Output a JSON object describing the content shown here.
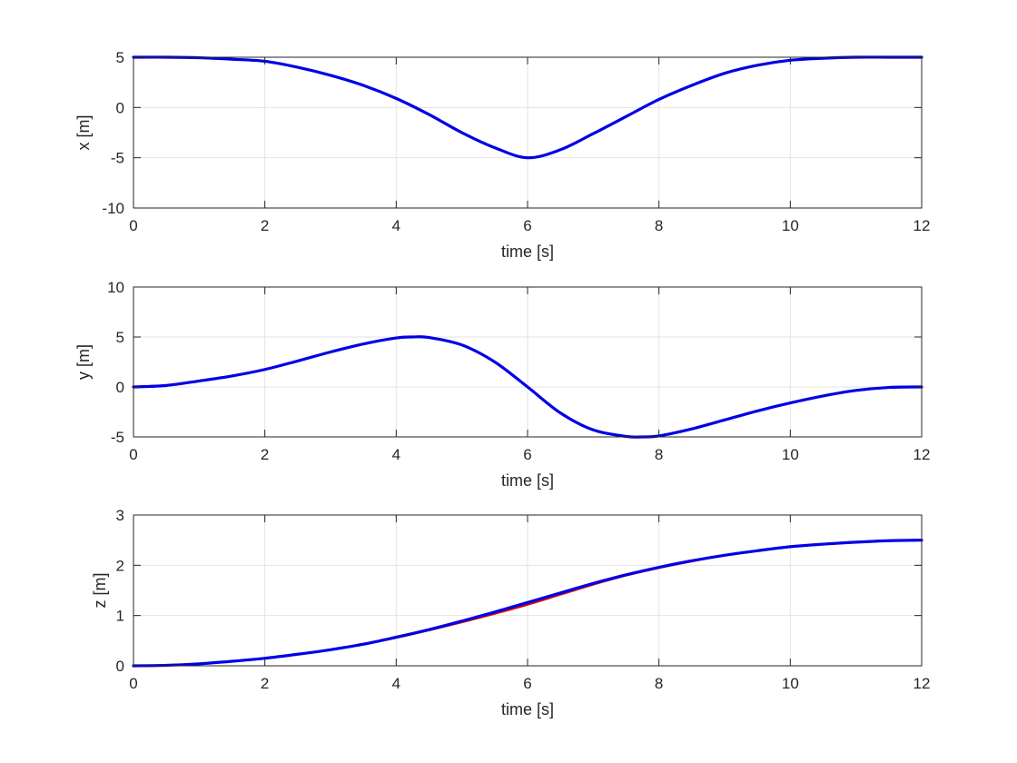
{
  "chart_data": [
    {
      "type": "line",
      "xlabel": "time [s]",
      "ylabel": "x [m]",
      "xlim": [
        0,
        12
      ],
      "ylim": [
        -10,
        5
      ],
      "xticks": [
        0,
        2,
        4,
        6,
        8,
        10,
        12
      ],
      "yticks": [
        -10,
        -5,
        0,
        5
      ],
      "grid": true,
      "series": [
        {
          "color": "#e00000",
          "x": [
            0,
            0.5,
            1,
            1.5,
            2,
            2.5,
            3,
            3.5,
            4,
            4.5,
            5,
            5.5,
            6,
            6.5,
            7,
            7.5,
            8,
            8.5,
            9,
            9.5,
            10,
            10.5,
            11,
            11.5,
            12
          ],
          "values": [
            5.0,
            5.0,
            4.95,
            4.8,
            4.6,
            4.0,
            3.2,
            2.2,
            0.9,
            -0.7,
            -2.5,
            -4.0,
            -5.0,
            -4.2,
            -2.6,
            -0.9,
            0.8,
            2.2,
            3.4,
            4.2,
            4.7,
            4.9,
            5.0,
            5.0,
            5.0
          ]
        },
        {
          "color": "#0000e6",
          "x": [
            0,
            0.5,
            1,
            1.5,
            2,
            2.5,
            3,
            3.5,
            4,
            4.5,
            5,
            5.5,
            6,
            6.5,
            7,
            7.5,
            8,
            8.5,
            9,
            9.5,
            10,
            10.5,
            11,
            11.5,
            12
          ],
          "values": [
            5.0,
            5.0,
            4.95,
            4.8,
            4.6,
            4.0,
            3.2,
            2.2,
            0.9,
            -0.7,
            -2.5,
            -4.0,
            -5.0,
            -4.2,
            -2.6,
            -0.9,
            0.8,
            2.2,
            3.4,
            4.2,
            4.7,
            4.9,
            5.0,
            5.0,
            5.0
          ]
        }
      ]
    },
    {
      "type": "line",
      "xlabel": "time [s]",
      "ylabel": "y [m]",
      "xlim": [
        0,
        12
      ],
      "ylim": [
        -5,
        10
      ],
      "xticks": [
        0,
        2,
        4,
        6,
        8,
        10,
        12
      ],
      "yticks": [
        -5,
        0,
        5,
        10
      ],
      "grid": true,
      "series": [
        {
          "color": "#e00000",
          "x": [
            0,
            0.5,
            1,
            1.5,
            2,
            2.5,
            3,
            3.5,
            4,
            4.25,
            4.5,
            5,
            5.5,
            6,
            6.5,
            7,
            7.5,
            7.75,
            8,
            8.5,
            9,
            9.5,
            10,
            10.5,
            11,
            11.5,
            12
          ],
          "values": [
            0,
            0.15,
            0.6,
            1.1,
            1.75,
            2.6,
            3.5,
            4.3,
            4.9,
            5.0,
            4.95,
            4.2,
            2.5,
            0.0,
            -2.6,
            -4.3,
            -4.95,
            -5.0,
            -4.9,
            -4.2,
            -3.3,
            -2.4,
            -1.6,
            -0.9,
            -0.35,
            -0.05,
            0
          ]
        },
        {
          "color": "#0000e6",
          "x": [
            0,
            0.5,
            1,
            1.5,
            2,
            2.5,
            3,
            3.5,
            4,
            4.25,
            4.5,
            5,
            5.5,
            6,
            6.5,
            7,
            7.5,
            7.75,
            8,
            8.5,
            9,
            9.5,
            10,
            10.5,
            11,
            11.5,
            12
          ],
          "values": [
            0,
            0.15,
            0.6,
            1.1,
            1.75,
            2.6,
            3.5,
            4.3,
            4.9,
            5.0,
            4.95,
            4.2,
            2.5,
            0.0,
            -2.6,
            -4.3,
            -4.95,
            -5.0,
            -4.9,
            -4.2,
            -3.3,
            -2.4,
            -1.6,
            -0.9,
            -0.35,
            -0.05,
            0
          ]
        }
      ]
    },
    {
      "type": "line",
      "xlabel": "time [s]",
      "ylabel": "z [m]",
      "xlim": [
        0,
        12
      ],
      "ylim": [
        0,
        3
      ],
      "xticks": [
        0,
        2,
        4,
        6,
        8,
        10,
        12
      ],
      "yticks": [
        0,
        1,
        2,
        3
      ],
      "grid": true,
      "series": [
        {
          "color": "#e00000",
          "x": [
            0,
            0.5,
            1,
            1.5,
            2,
            2.5,
            3,
            3.5,
            4,
            4.5,
            5,
            5.5,
            6,
            6.5,
            7,
            7.5,
            8,
            8.5,
            9,
            9.5,
            10,
            10.5,
            11,
            11.5,
            12
          ],
          "values": [
            0,
            0.01,
            0.04,
            0.09,
            0.15,
            0.23,
            0.32,
            0.43,
            0.56,
            0.71,
            0.87,
            1.04,
            1.22,
            1.42,
            1.62,
            1.8,
            1.95,
            2.08,
            2.2,
            2.29,
            2.37,
            2.42,
            2.46,
            2.49,
            2.5
          ]
        },
        {
          "color": "#0000e6",
          "x": [
            0,
            0.5,
            1,
            1.5,
            2,
            2.5,
            3,
            3.5,
            4,
            4.5,
            5,
            5.5,
            6,
            6.5,
            7,
            7.5,
            8,
            8.5,
            9,
            9.5,
            10,
            10.5,
            11,
            11.5,
            12
          ],
          "values": [
            0,
            0.01,
            0.04,
            0.09,
            0.15,
            0.23,
            0.32,
            0.43,
            0.57,
            0.72,
            0.89,
            1.07,
            1.26,
            1.45,
            1.64,
            1.81,
            1.96,
            2.09,
            2.2,
            2.29,
            2.37,
            2.42,
            2.46,
            2.49,
            2.5
          ]
        }
      ]
    }
  ]
}
